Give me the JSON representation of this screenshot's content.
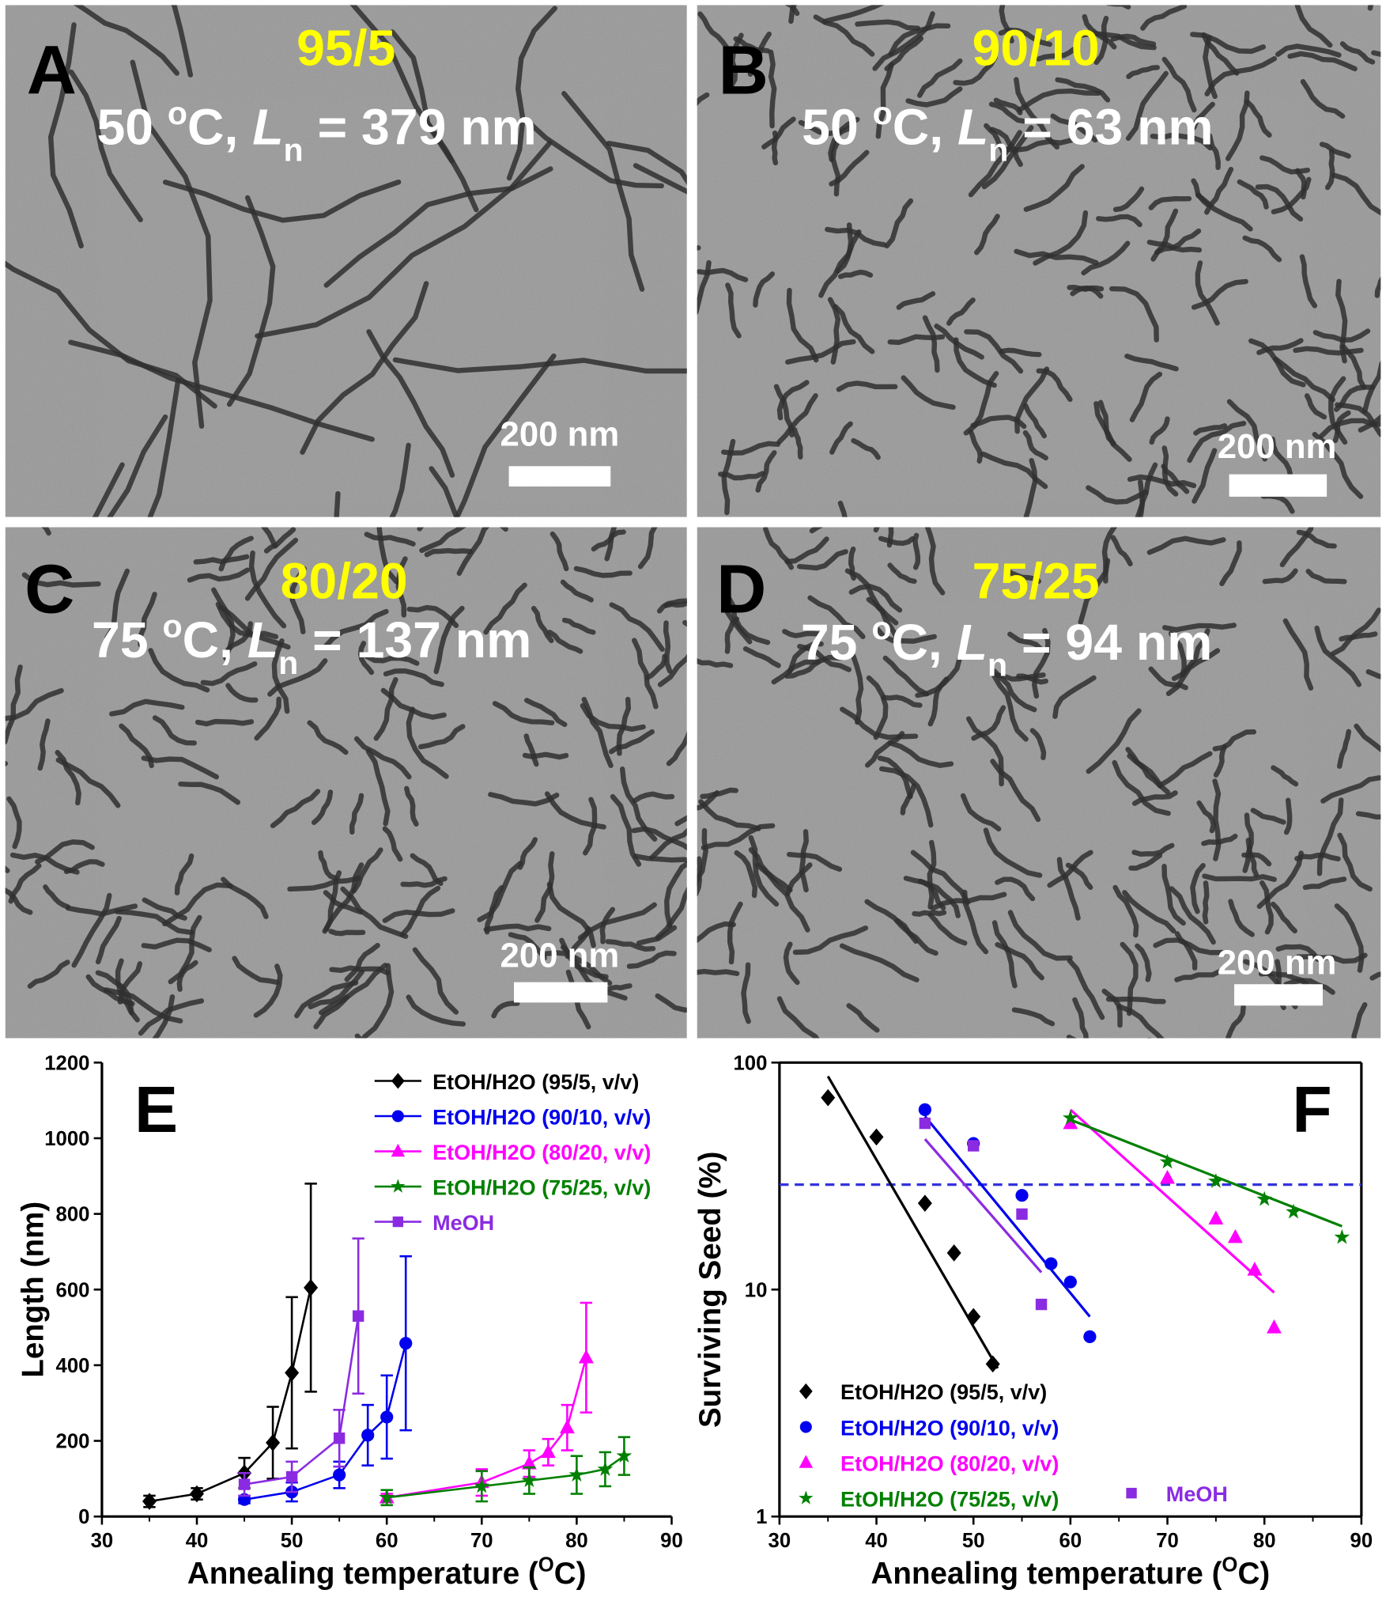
{
  "panels": [
    {
      "letter": "A",
      "ratio": "95/5",
      "line": [
        "50 ",
        "o",
        "C, ",
        "L",
        "n",
        " = 379 nm"
      ],
      "scale": "200 nm"
    },
    {
      "letter": "B",
      "ratio": "90/10",
      "line": [
        "50 ",
        "o",
        "C, ",
        "L",
        "n",
        " = 63 nm"
      ],
      "scale": "200 nm"
    },
    {
      "letter": "C",
      "ratio": "80/20",
      "line": [
        "75 ",
        "o",
        "C, ",
        "L",
        "n",
        " = 137 nm"
      ],
      "scale": "200 nm"
    },
    {
      "letter": "D",
      "ratio": "75/25",
      "line": [
        "75 ",
        "o",
        "C, ",
        "L",
        "n",
        " = 94 nm"
      ],
      "scale": "200 nm"
    }
  ],
  "chart_data": [
    {
      "type": "line",
      "letter": "E",
      "xlabel": [
        "Annealing temperature (",
        "O",
        "C)"
      ],
      "ylabel": "Length (nm)",
      "xlim": [
        30,
        90
      ],
      "ylim": [
        0,
        1200
      ],
      "xticks": [
        30,
        40,
        50,
        60,
        70,
        80,
        90
      ],
      "yticks": [
        0,
        200,
        400,
        600,
        800,
        1000,
        1200
      ],
      "legend": "upper right",
      "series": [
        {
          "name": "EtOH/H2O (95/5, v/v)",
          "color": "#000000",
          "marker": "diamond",
          "x": [
            35,
            40,
            45,
            48,
            50,
            52
          ],
          "values": [
            40,
            60,
            115,
            195,
            380,
            605
          ],
          "errors": [
            15,
            15,
            40,
            95,
            200,
            275
          ]
        },
        {
          "name": "EtOH/H2O (90/10, v/v)",
          "color": "#0000ee",
          "marker": "circle",
          "x": [
            45,
            50,
            55,
            58,
            60,
            62
          ],
          "values": [
            45,
            65,
            110,
            215,
            263,
            458
          ],
          "errors": [
            10,
            25,
            35,
            80,
            110,
            230
          ]
        },
        {
          "name": "EtOH/H2O (80/20, v/v)",
          "color": "#ff00ff",
          "marker": "triangle",
          "x": [
            60,
            70,
            75,
            77,
            79,
            81
          ],
          "values": [
            50,
            90,
            140,
            170,
            235,
            420
          ],
          "errors": [
            10,
            35,
            35,
            35,
            60,
            145
          ]
        },
        {
          "name": "EtOH/H2O (75/25, v/v)",
          "color": "#008000",
          "marker": "star",
          "x": [
            60,
            70,
            75,
            80,
            83,
            85
          ],
          "values": [
            50,
            80,
            95,
            110,
            125,
            160
          ],
          "errors": [
            20,
            40,
            35,
            50,
            45,
            50
          ]
        },
        {
          "name": "MeOH",
          "color": "#8a2be2",
          "marker": "square",
          "x": [
            45,
            50,
            55,
            57
          ],
          "values": [
            85,
            105,
            207,
            530
          ],
          "errors": [
            30,
            40,
            75,
            205
          ]
        }
      ]
    },
    {
      "type": "scatter",
      "letter": "F",
      "xlabel": [
        "Annealing temperature (",
        "O",
        "C)"
      ],
      "ylabel": "Surviving Seed (%)",
      "xlim": [
        30,
        90
      ],
      "ylim": [
        1,
        100
      ],
      "log_y": true,
      "xticks": [
        30,
        40,
        50,
        60,
        70,
        80,
        90
      ],
      "yticks": [
        1,
        10,
        100
      ],
      "legend": "lower left",
      "hline": {
        "value": 29,
        "color": "#3333dd",
        "style": "dashed"
      },
      "series": [
        {
          "name": "EtOH/H2O (95/5, v/v)",
          "color": "#000000",
          "marker": "diamond",
          "x": [
            35,
            40,
            45,
            48,
            50,
            52
          ],
          "values": [
            70,
            47,
            24,
            14.5,
            7.6,
            4.7
          ],
          "fit": {
            "x": [
              35,
              52.5
            ],
            "y": [
              87,
              4.5
            ]
          }
        },
        {
          "name": "EtOH/H2O (90/10, v/v)",
          "color": "#0000ee",
          "marker": "circle",
          "x": [
            45,
            50,
            55,
            58,
            60,
            62
          ],
          "values": [
            62,
            44,
            26,
            13,
            10.8,
            6.2
          ],
          "fit": {
            "x": [
              45,
              62
            ],
            "y": [
              58,
              7.6
            ]
          }
        },
        {
          "name": "EtOH/H2O (80/20, v/v)",
          "color": "#ff00ff",
          "marker": "triangle",
          "x": [
            60,
            70,
            75,
            77,
            79,
            81
          ],
          "values": [
            54,
            31,
            20.5,
            17,
            12.2,
            6.8
          ],
          "fit": {
            "x": [
              60,
              81
            ],
            "y": [
              62,
              9.7
            ]
          }
        },
        {
          "name": "EtOH/H2O (75/25, v/v)",
          "color": "#008000",
          "marker": "star",
          "x": [
            60,
            70,
            75,
            80,
            83,
            88
          ],
          "values": [
            57,
            36.5,
            30,
            25,
            22,
            17
          ],
          "fit": {
            "x": [
              60,
              88
            ],
            "y": [
              56,
              19
            ]
          }
        },
        {
          "name": "MeOH",
          "color": "#8a2be2",
          "marker": "square",
          "x": [
            45,
            50,
            55,
            57
          ],
          "values": [
            54,
            43,
            21.5,
            8.6
          ],
          "fit": {
            "x": [
              45,
              57
            ],
            "y": [
              46,
              11.9
            ]
          }
        }
      ]
    }
  ]
}
